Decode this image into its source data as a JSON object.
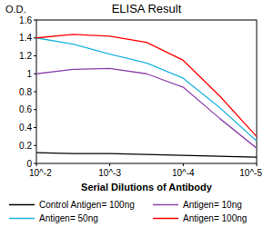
{
  "chart_data": {
    "type": "line",
    "title": "ELISA Result",
    "y_label": "O.D.",
    "x_label": "Serial Dilutions of Antibody",
    "log": "x",
    "grid": false,
    "legend": "bottom",
    "xlim": [
      0.01,
      1e-05
    ],
    "xticks": [
      {
        "value": 0.01,
        "label": "10^-2"
      },
      {
        "value": 0.001,
        "label": "10^-3"
      },
      {
        "value": 0.0001,
        "label": "10^-4"
      },
      {
        "value": 1e-05,
        "label": "10^-5"
      }
    ],
    "ylim": [
      0,
      1.6
    ],
    "yticks": [
      0,
      0.2,
      0.4,
      0.6,
      0.8,
      1,
      1.2,
      1.4,
      1.6
    ],
    "x": [
      0.01,
      0.00316,
      0.001,
      0.000316,
      0.0001,
      3.16e-05,
      1e-05
    ],
    "series": [
      {
        "name": "Control Antigen= 100ng",
        "color": "#000000",
        "values": [
          0.12,
          0.11,
          0.11,
          0.1,
          0.09,
          0.08,
          0.07
        ]
      },
      {
        "name": "Antigen= 10ng",
        "color": "#8e44ad",
        "values": [
          1.0,
          1.05,
          1.06,
          1.0,
          0.85,
          0.5,
          0.17
        ]
      },
      {
        "name": "Antigen= 50ng",
        "color": "#1fb5e0",
        "values": [
          1.4,
          1.33,
          1.22,
          1.12,
          0.95,
          0.62,
          0.25
        ]
      },
      {
        "name": "Antigen= 100ng",
        "color": "#ff0000",
        "values": [
          1.4,
          1.44,
          1.42,
          1.35,
          1.15,
          0.75,
          0.3
        ]
      }
    ]
  }
}
